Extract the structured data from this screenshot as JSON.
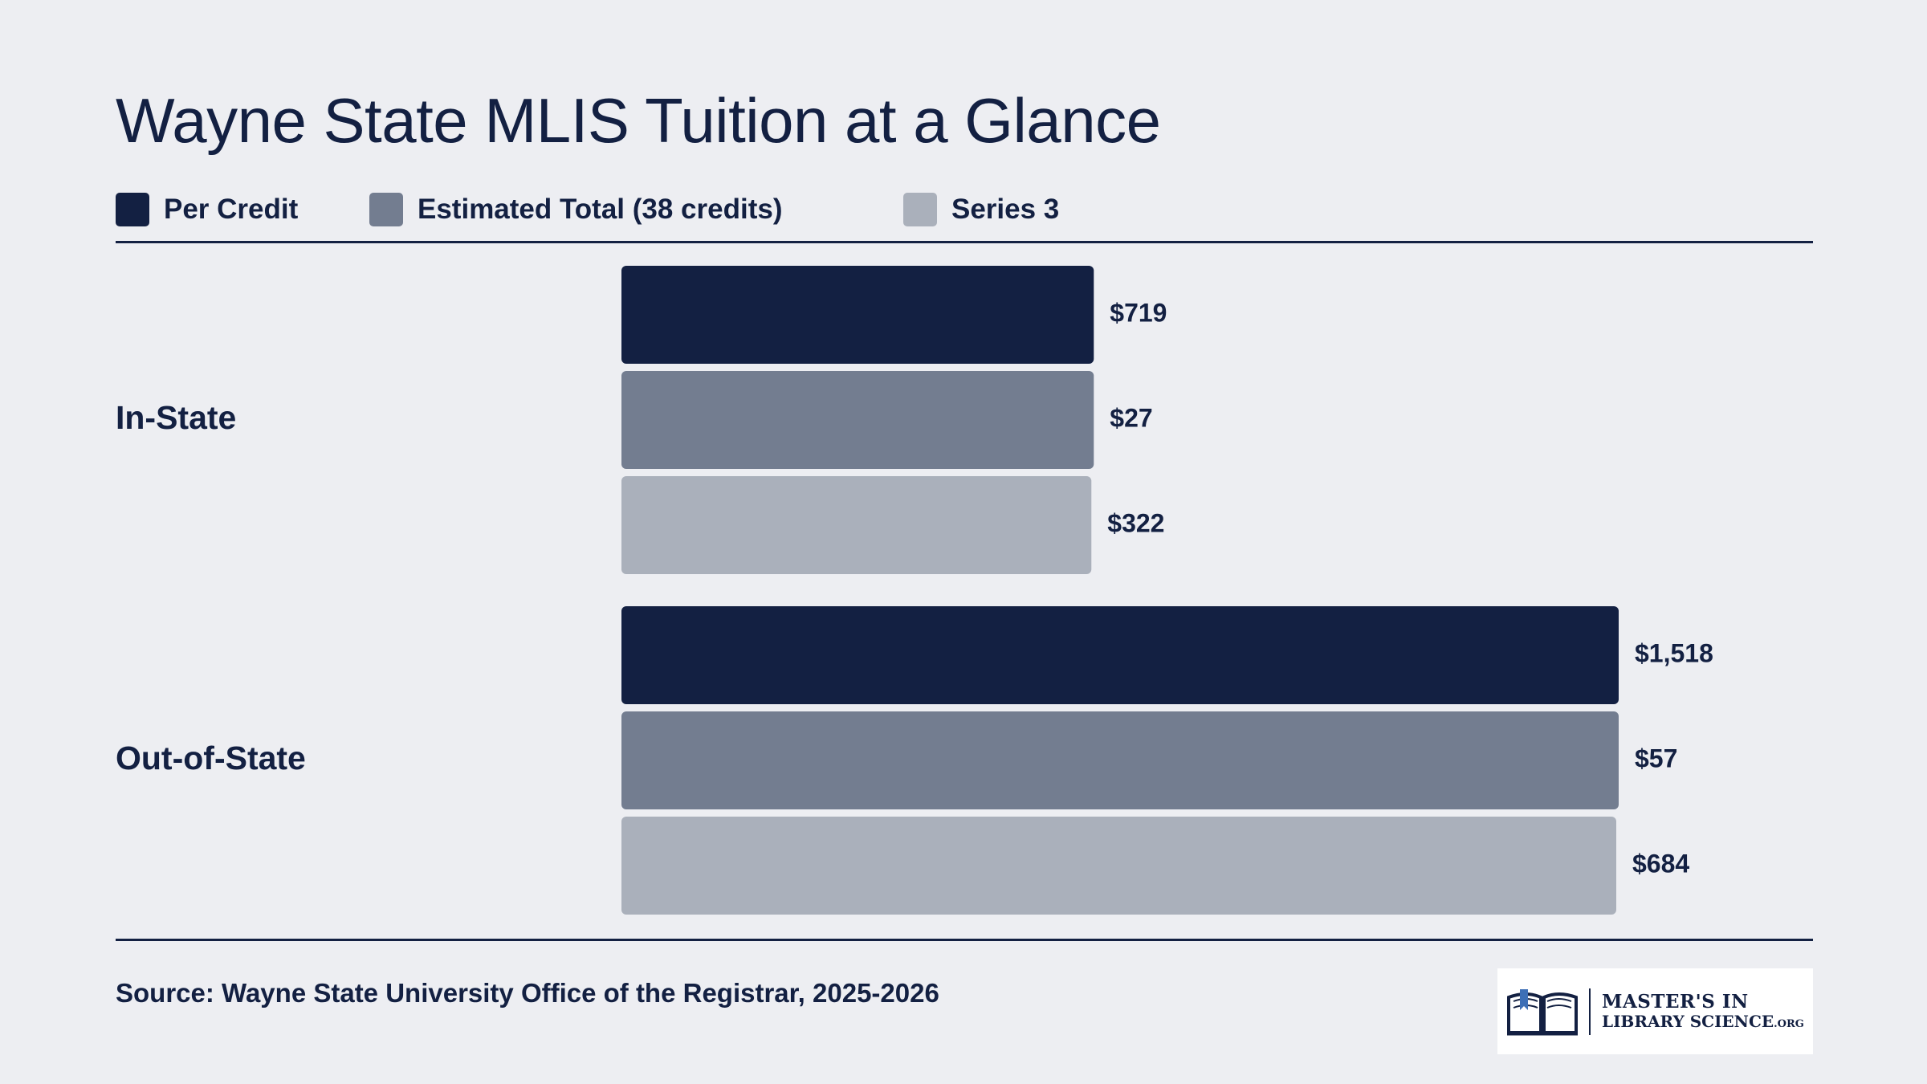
{
  "chart_data": {
    "type": "bar",
    "orientation": "horizontal",
    "title": "Wayne State MLIS Tuition at a Glance",
    "categories": [
      "In-State",
      "Out-of-State"
    ],
    "series": [
      {
        "name": "Per Credit",
        "color": "#132042",
        "values": [
          719,
          1518
        ],
        "labels": [
          "$719",
          "$1,518"
        ]
      },
      {
        "name": "Estimated Total (38 credits)",
        "color": "#737d90",
        "values": [
          27,
          57
        ],
        "labels": [
          "$27",
          "$57"
        ]
      },
      {
        "name": "Series 3",
        "color": "#aab0bb",
        "values": [
          322,
          684
        ],
        "labels": [
          "$322",
          "$684"
        ]
      }
    ],
    "legend_position": "top-left",
    "grid": false
  },
  "footer": {
    "source": "Source: Wayne State University Office of the Registrar, 2025-2026"
  },
  "logo": {
    "line1": "MASTER'S IN",
    "line2": "LIBRARY SCIENCE",
    "suffix": ".ORG",
    "icon": "open-book-icon"
  }
}
